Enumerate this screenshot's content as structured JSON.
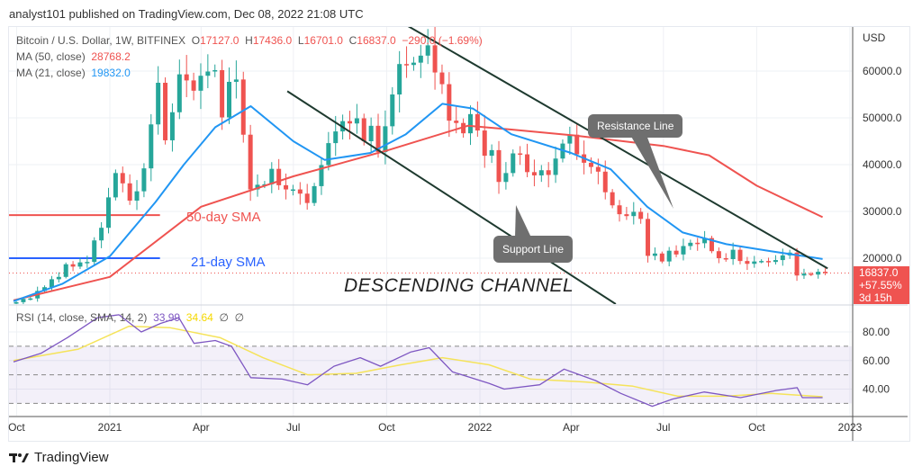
{
  "publisher_line": "analyst101 published on TradingView.com, Dec 08, 2022 21:08 UTC",
  "symbol_line": {
    "symbol": "Bitcoin / U.S. Dollar, 1W, BITFINEX",
    "open_label": "O",
    "open": "17127.0",
    "high_label": "H",
    "high": "17436.0",
    "low_label": "L",
    "low": "16701.0",
    "close_label": "C",
    "close": "16837.0",
    "change": "−290.0 (−1.69%)"
  },
  "ma50": {
    "label": "MA (50, close)",
    "value": "28768.2"
  },
  "ma21": {
    "label": "MA (21, close)",
    "value": "19832.0"
  },
  "rsi_legend": {
    "label": "RSI (14, close, SMA, 14, 2)",
    "value": "33.99",
    "sma_value": "34.64",
    "extra1": "∅",
    "extra2": "∅"
  },
  "price_axis": {
    "currency": "USD",
    "ticks": [
      "60000.0",
      "50000.0",
      "40000.0",
      "30000.0",
      "20000.0"
    ]
  },
  "price_tag": {
    "price": "16837.0",
    "change": "+57.55%",
    "countdown": "3d 15h"
  },
  "rsi_axis": {
    "ticks": [
      "80.00",
      "60.00",
      "40.00"
    ]
  },
  "annotations": {
    "sma50": "50-day SMA",
    "sma21": "21-day SMA",
    "channel": "DESCENDING CHANNEL",
    "resistance": "Resistance Line",
    "support": "Support Line"
  },
  "footer_logo": "TradingView",
  "colors": {
    "up": "#26a69a",
    "down": "#ef5350",
    "ma50": "#ef5350",
    "ma21": "#2196f3",
    "rsi": "#7e57c2",
    "rsi_sma": "#f5e35a",
    "channel": "#1e3a2f"
  },
  "chart_data": {
    "type": "candlestick",
    "interval": "1W",
    "start_week": "2020-09-28",
    "weekly_close": [
      10600,
      11300,
      11400,
      13000,
      13800,
      15500,
      16000,
      18700,
      18200,
      19100,
      19200,
      23800,
      26500,
      33000,
      38200,
      36000,
      32300,
      34300,
      39200,
      48600,
      57500,
      45200,
      51200,
      59300,
      58000,
      55800,
      59000,
      59900,
      60200,
      50100,
      57700,
      58200,
      46400,
      34700,
      35700,
      35800,
      39100,
      35600,
      34700,
      34700,
      33800,
      31800,
      35400,
      39900,
      44600,
      47100,
      49300,
      48800,
      49900,
      45000,
      48300,
      42700,
      48200,
      55000,
      61500,
      61300,
      61800,
      63300,
      65500,
      59700,
      57200,
      49400,
      48900,
      46700,
      50800,
      47300,
      41900,
      43100,
      36300,
      38200,
      42400,
      42200,
      38400,
      37700,
      38800,
      37800,
      41300,
      44500,
      46400,
      42200,
      40400,
      39500,
      38500,
      34100,
      31300,
      29400,
      29000,
      29900,
      28400,
      20500,
      21000,
      19300,
      21600,
      20800,
      22600,
      23300,
      23200,
      24300,
      21500,
      20000,
      19800,
      21800,
      19400,
      18800,
      19300,
      19400,
      19200,
      19600,
      20600,
      21200,
      16300,
      16700,
      16500,
      17100,
      16837
    ],
    "ma50_points": [
      [
        "2020-09-28",
        11000
      ],
      [
        "2021-01-01",
        16000
      ],
      [
        "2021-04-01",
        31000
      ],
      [
        "2021-07-01",
        37500
      ],
      [
        "2021-10-01",
        43000
      ],
      [
        "2021-12-20",
        48300
      ],
      [
        "2022-02-01",
        47500
      ],
      [
        "2022-04-01",
        46300
      ],
      [
        "2022-07-01",
        44000
      ],
      [
        "2022-08-15",
        42000
      ],
      [
        "2022-10-01",
        35500
      ],
      [
        "2022-12-05",
        28768
      ]
    ],
    "ma21_points": [
      [
        "2020-09-28",
        10800
      ],
      [
        "2020-11-15",
        14500
      ],
      [
        "2021-01-01",
        20400
      ],
      [
        "2021-02-15",
        32000
      ],
      [
        "2021-03-15",
        40000
      ],
      [
        "2021-04-15",
        48000
      ],
      [
        "2021-05-20",
        52500
      ],
      [
        "2021-07-01",
        45000
      ],
      [
        "2021-08-01",
        41000
      ],
      [
        "2021-09-15",
        42500
      ],
      [
        "2021-10-20",
        46500
      ],
      [
        "2021-11-25",
        53000
      ],
      [
        "2021-12-25",
        52000
      ],
      [
        "2022-02-01",
        46500
      ],
      [
        "2022-04-01",
        42500
      ],
      [
        "2022-05-10",
        39000
      ],
      [
        "2022-06-15",
        31000
      ],
      [
        "2022-07-20",
        25500
      ],
      [
        "2022-09-01",
        23000
      ],
      [
        "2022-10-15",
        21500
      ],
      [
        "2022-12-05",
        19832
      ]
    ],
    "rsi_points": [
      [
        "2020-09-28",
        59
      ],
      [
        "2020-10-25",
        65
      ],
      [
        "2020-11-20",
        76
      ],
      [
        "2020-12-20",
        90
      ],
      [
        "2021-01-10",
        92
      ],
      [
        "2021-02-01",
        80
      ],
      [
        "2021-02-20",
        86
      ],
      [
        "2021-03-10",
        90
      ],
      [
        "2021-03-25",
        72
      ],
      [
        "2021-04-15",
        74
      ],
      [
        "2021-05-01",
        70
      ],
      [
        "2021-05-20",
        48
      ],
      [
        "2021-06-20",
        47
      ],
      [
        "2021-07-15",
        43
      ],
      [
        "2021-08-10",
        56
      ],
      [
        "2021-09-05",
        62
      ],
      [
        "2021-09-25",
        56
      ],
      [
        "2021-10-25",
        66
      ],
      [
        "2021-11-12",
        69
      ],
      [
        "2021-12-05",
        52
      ],
      [
        "2022-01-10",
        44
      ],
      [
        "2022-01-25",
        40
      ],
      [
        "2022-03-01",
        43
      ],
      [
        "2022-03-25",
        54
      ],
      [
        "2022-04-25",
        46
      ],
      [
        "2022-05-20",
        37
      ],
      [
        "2022-06-20",
        28
      ],
      [
        "2022-07-10",
        33
      ],
      [
        "2022-08-10",
        38
      ],
      [
        "2022-09-15",
        34
      ],
      [
        "2022-10-20",
        39
      ],
      [
        "2022-11-10",
        41
      ],
      [
        "2022-11-15",
        34
      ],
      [
        "2022-12-05",
        33.99
      ]
    ],
    "rsi_sma_points": [
      [
        "2020-09-28",
        60
      ],
      [
        "2020-12-01",
        68
      ],
      [
        "2021-01-20",
        84
      ],
      [
        "2021-03-01",
        83
      ],
      [
        "2021-04-20",
        76
      ],
      [
        "2021-06-01",
        62
      ],
      [
        "2021-07-15",
        50
      ],
      [
        "2021-09-01",
        51
      ],
      [
        "2021-10-15",
        57
      ],
      [
        "2021-11-25",
        62
      ],
      [
        "2022-01-10",
        57
      ],
      [
        "2022-02-20",
        47
      ],
      [
        "2022-04-15",
        45
      ],
      [
        "2022-06-01",
        42
      ],
      [
        "2022-07-15",
        35
      ],
      [
        "2022-09-01",
        35
      ],
      [
        "2022-10-15",
        37
      ],
      [
        "2022-12-05",
        34.64
      ]
    ],
    "rsi_band": [
      30,
      70
    ],
    "rsi_mid": 50,
    "horizontal_levels": [
      {
        "price": 29200,
        "color": "#ef5350",
        "from": "2020-09-28",
        "to": "2021-02-15"
      },
      {
        "price": 20000,
        "color": "#2962ff",
        "from": "2020-09-28",
        "to": "2021-02-15"
      }
    ],
    "trendlines": {
      "resistance": [
        [
          "2021-10-15",
          70500
        ],
        [
          "2022-12-10",
          17800
        ]
      ],
      "support": [
        [
          "2021-06-25",
          55700
        ],
        [
          "2022-05-15",
          10200
        ]
      ]
    },
    "last_price": 16837,
    "time_ticks": [
      {
        "label": "Oct",
        "date": "2020-10-01"
      },
      {
        "label": "2021",
        "date": "2021-01-01"
      },
      {
        "label": "Apr",
        "date": "2021-04-01"
      },
      {
        "label": "Jul",
        "date": "2021-07-01"
      },
      {
        "label": "Oct",
        "date": "2021-10-01"
      },
      {
        "label": "2022",
        "date": "2022-01-01"
      },
      {
        "label": "Apr",
        "date": "2022-04-01"
      },
      {
        "label": "Jul",
        "date": "2022-07-01"
      },
      {
        "label": "Oct",
        "date": "2022-10-01"
      },
      {
        "label": "2023",
        "date": "2023-01-01"
      }
    ],
    "price_range": [
      9000,
      69000
    ],
    "rsi_range": [
      21,
      98
    ]
  }
}
